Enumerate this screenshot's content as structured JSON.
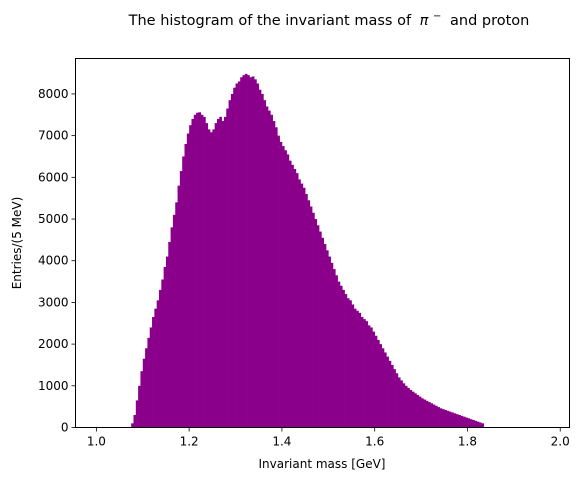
{
  "chart_data": {
    "type": "bar",
    "subtype": "histogram",
    "title": "The histogram of the invariant mass of π⁻ and proton",
    "title_prefix": "The histogram of the invariant mass of",
    "title_math": "π",
    "title_superscript": "−",
    "title_suffix": "and proton",
    "xlabel": "Invariant mass [GeV]",
    "ylabel": "Entries/(5 MeV)",
    "xlim": [
      0.955,
      2.02
    ],
    "ylim": [
      0,
      8850
    ],
    "xticks": [
      1.0,
      1.2,
      1.4,
      1.6,
      1.8,
      2.0
    ],
    "xtick_labels": [
      "1.0",
      "1.2",
      "1.4",
      "1.6",
      "1.8",
      "2.0"
    ],
    "yticks": [
      0,
      1000,
      2000,
      3000,
      4000,
      5000,
      6000,
      7000,
      8000
    ],
    "ytick_labels": [
      "0",
      "1000",
      "2000",
      "3000",
      "4000",
      "5000",
      "6000",
      "7000",
      "8000"
    ],
    "bar_color": "#8b008b",
    "grid": false,
    "bin_width": 0.005,
    "bin_start": 1.075,
    "values": [
      100,
      300,
      650,
      1000,
      1350,
      1650,
      1900,
      2150,
      2400,
      2650,
      2850,
      3050,
      3300,
      3550,
      3850,
      4100,
      4450,
      4800,
      5100,
      5400,
      5800,
      6150,
      6500,
      6800,
      7050,
      7250,
      7400,
      7500,
      7550,
      7560,
      7500,
      7450,
      7300,
      7150,
      7080,
      7150,
      7300,
      7400,
      7450,
      7350,
      7450,
      7650,
      7850,
      8000,
      8150,
      8250,
      8300,
      8400,
      8450,
      8480,
      8450,
      8400,
      8420,
      8350,
      8250,
      8100,
      8000,
      7850,
      7700,
      7600,
      7500,
      7350,
      7200,
      7000,
      6850,
      6750,
      6650,
      6550,
      6400,
      6300,
      6200,
      6100,
      5950,
      5850,
      5750,
      5600,
      5450,
      5300,
      5150,
      5000,
      4850,
      4700,
      4550,
      4400,
      4250,
      4100,
      3950,
      3800,
      3650,
      3500,
      3400,
      3300,
      3200,
      3100,
      3050,
      2950,
      2850,
      2800,
      2750,
      2650,
      2600,
      2550,
      2450,
      2400,
      2300,
      2200,
      2100,
      2000,
      1900,
      1800,
      1700,
      1600,
      1500,
      1400,
      1300,
      1200,
      1130,
      1060,
      1000,
      950,
      900,
      860,
      820,
      780,
      740,
      700,
      670,
      640,
      610,
      580,
      550,
      520,
      490,
      460,
      440,
      420,
      400,
      380,
      360,
      340,
      320,
      300,
      280,
      260,
      240,
      220,
      200,
      180,
      160,
      140,
      120,
      100
    ]
  }
}
